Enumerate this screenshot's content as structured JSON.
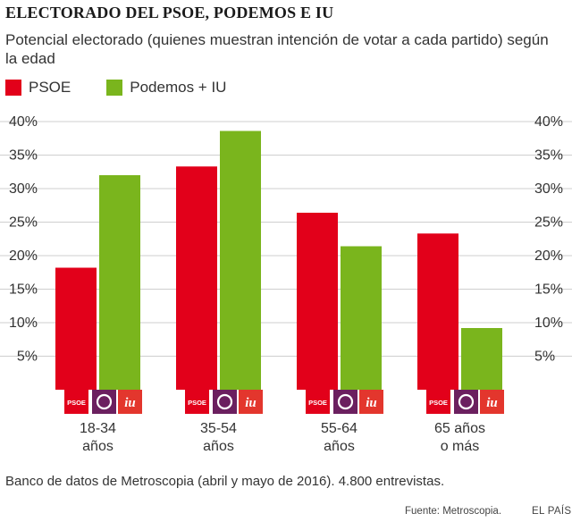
{
  "title": "ELECTORADO DEL PSOE, PODEMOS E IU",
  "subtitle": "Potencial electorado (quienes muestran intención de votar a cada partido) según la edad",
  "legend": {
    "psoe": "PSOE",
    "podemos": "Podemos + IU"
  },
  "colors": {
    "psoe": "#e2001a",
    "podemos": "#7ab51d",
    "podemos_logo": "#6b1f5f",
    "iu_logo": "#e3362d",
    "grid": "#cfcfcf"
  },
  "logos": {
    "psoe": "PSOE",
    "iu": "iu"
  },
  "footnote": "Banco de datos de Metroscopia (abril y mayo de 2016). 4.800 entrevistas.",
  "source": "Fuente: Metroscopia.",
  "brand": "EL PAÍS",
  "chart_data": {
    "type": "bar",
    "title": "ELECTORADO DEL PSOE, PODEMOS E IU",
    "categories": [
      [
        "18-34",
        "años"
      ],
      [
        "35-54",
        "años"
      ],
      [
        "55-64",
        "años"
      ],
      [
        "65 años",
        "o más"
      ]
    ],
    "series": [
      {
        "name": "PSOE",
        "values": [
          18.2,
          33.3,
          26.4,
          23.3
        ]
      },
      {
        "name": "Podemos + IU",
        "values": [
          32.0,
          38.6,
          21.4,
          9.2
        ]
      }
    ],
    "yticks": [
      "5%",
      "10%",
      "15%",
      "20%",
      "25%",
      "30%",
      "35%",
      "40%"
    ],
    "ytick_values": [
      5,
      10,
      15,
      20,
      25,
      30,
      35,
      40
    ],
    "ylim": [
      0,
      40
    ],
    "xlabel": "",
    "ylabel": "",
    "grid": true,
    "legend": "top-left"
  }
}
